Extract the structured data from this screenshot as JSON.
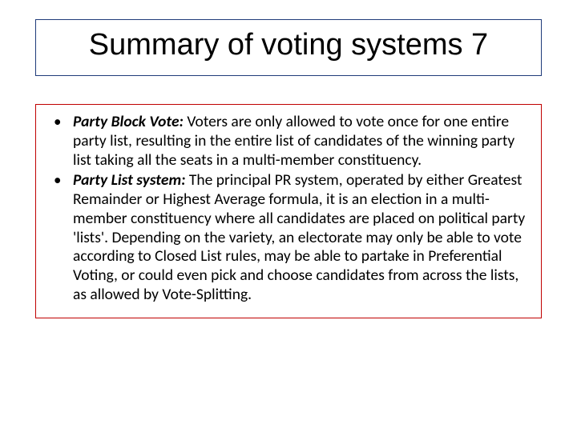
{
  "title": "Summary of voting systems 7",
  "bullets": [
    {
      "term": "Party Block Vote:",
      "body": " Voters are only allowed to vote once for one entire party list, resulting in the entire list of candidates of the winning party list taking all the seats in a multi-member constituency."
    },
    {
      "term": "Party List system:",
      "body": " The principal PR system, operated by either Greatest Remainder or Highest Average formula, it is an election in a multi-member constituency where all candidates are placed on political party 'lists'. Depending on the variety, an electorate may only be able to vote according to Closed List rules, may be able to partake in Preferential Voting, or could even pick and choose candidates from across the lists, as allowed by Vote-Splitting."
    }
  ],
  "colors": {
    "title_border": "#1f3b7a",
    "content_border": "#c00000",
    "text": "#000000",
    "background": "#ffffff"
  },
  "typography": {
    "title_fontsize": 38,
    "body_fontsize": 19.5,
    "title_family": "Arial",
    "body_family": "Calibri"
  }
}
